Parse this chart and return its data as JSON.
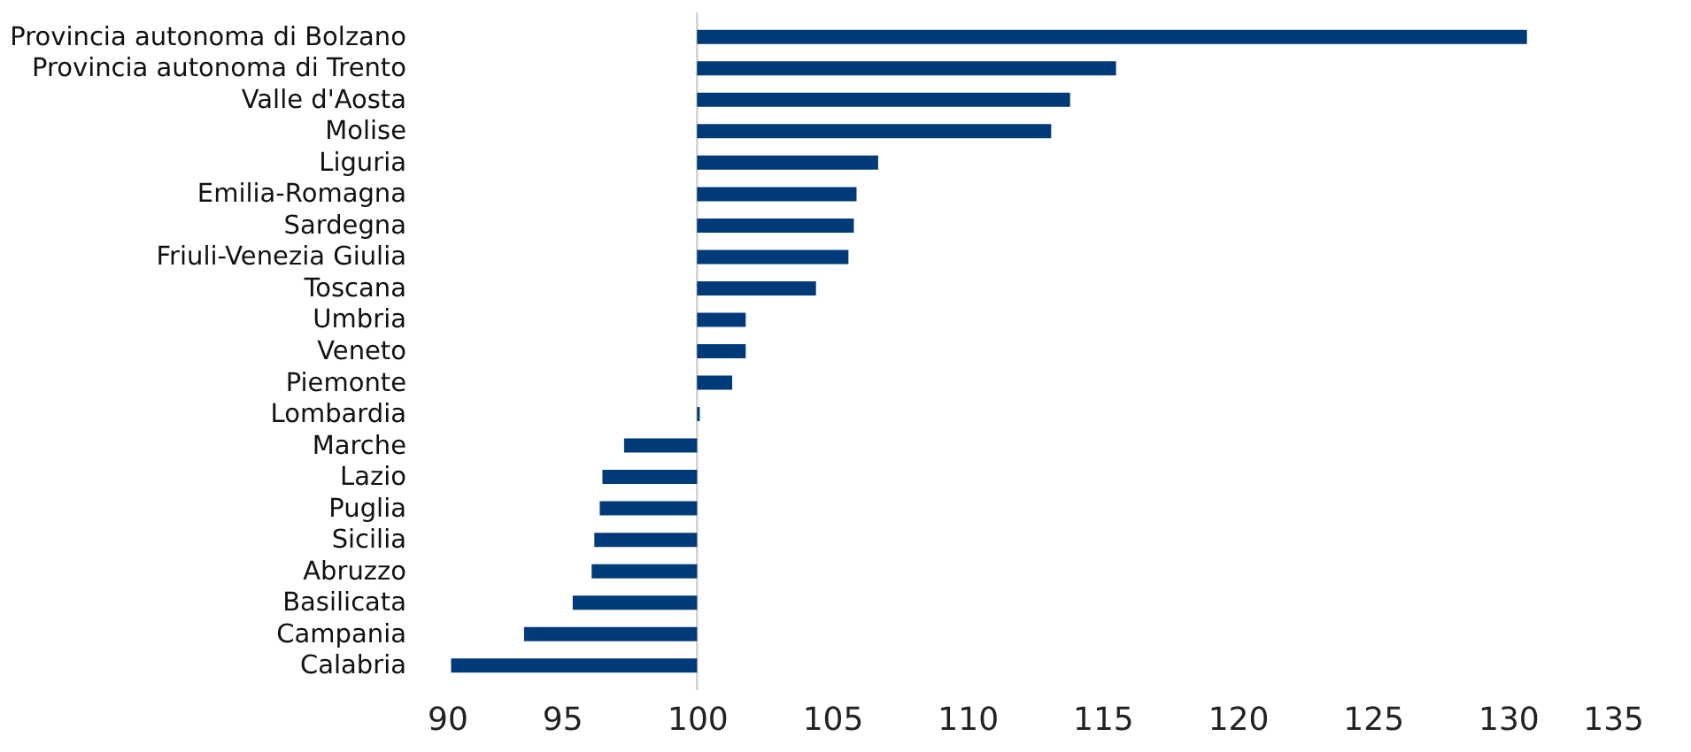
{
  "chart_data": {
    "type": "bar",
    "orientation": "horizontal",
    "categories": [
      "Provincia autonoma di Bolzano",
      "Provincia autonoma di Trento",
      "Valle d'Aosta",
      "Molise",
      "Liguria",
      "Emilia-Romagna",
      "Sardegna",
      "Friuli-Venezia Giulia",
      "Toscana",
      "Umbria",
      "Veneto",
      "Piemonte",
      "Lombardia",
      "Marche",
      "Lazio",
      "Puglia",
      "Sicilia",
      "Abruzzo",
      "Basilicata",
      "Campania",
      "Calabria"
    ],
    "base": [
      100,
      100,
      100,
      100,
      100,
      100,
      100,
      100,
      100,
      100,
      100,
      100,
      100,
      100,
      100,
      100,
      100,
      100,
      100,
      100,
      100
    ],
    "values": [
      30.7,
      15.5,
      13.8,
      13.1,
      6.7,
      5.9,
      5.8,
      5.6,
      4.4,
      1.8,
      1.8,
      1.3,
      0.1,
      -2.7,
      -3.5,
      -3.6,
      -3.8,
      -3.9,
      -4.6,
      -6.4,
      -9.1
    ],
    "color": "#003a78",
    "xlim": [
      90,
      135
    ],
    "xticks": [
      90,
      95,
      100,
      105,
      110,
      115,
      120,
      125,
      130,
      135
    ],
    "ref_lines": [
      {
        "axis": "x",
        "value": 100,
        "color": "#d0d0d0"
      }
    ],
    "grid": false
  }
}
